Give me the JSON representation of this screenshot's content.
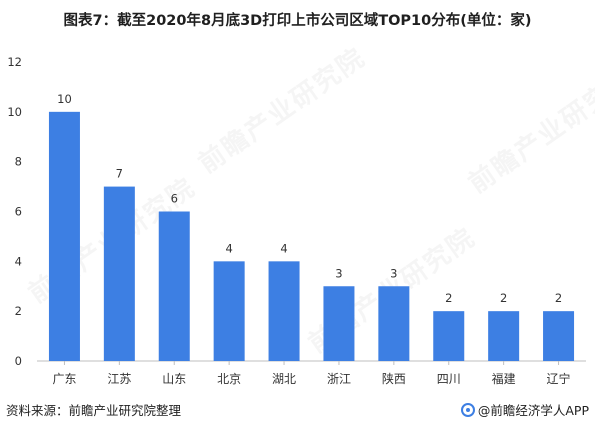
{
  "title": "图表7：截至2020年8月底3D打印上市公司区域TOP10分布(单位：家)",
  "footer": {
    "source": "资料来源：前瞻产业研究院整理",
    "brand": "@前瞻经济学人APP"
  },
  "watermark_text": "前瞻产业研究院",
  "colors": {
    "bar": "#3d7fe3",
    "axis": "#bfbfbf",
    "text": "#333333"
  },
  "chart_data": {
    "type": "bar",
    "title": "图表7：截至2020年8月底3D打印上市公司区域TOP10分布(单位：家)",
    "categories": [
      "广东",
      "江苏",
      "山东",
      "北京",
      "湖北",
      "浙江",
      "陕西",
      "四川",
      "福建",
      "辽宁"
    ],
    "values": [
      10,
      7,
      6,
      4,
      4,
      3,
      3,
      2,
      2,
      2
    ],
    "ylim": [
      0,
      12
    ],
    "yticks": [
      0,
      2,
      4,
      6,
      8,
      10,
      12
    ],
    "xlabel": "",
    "ylabel": "",
    "grid": false,
    "data_labels": true
  }
}
